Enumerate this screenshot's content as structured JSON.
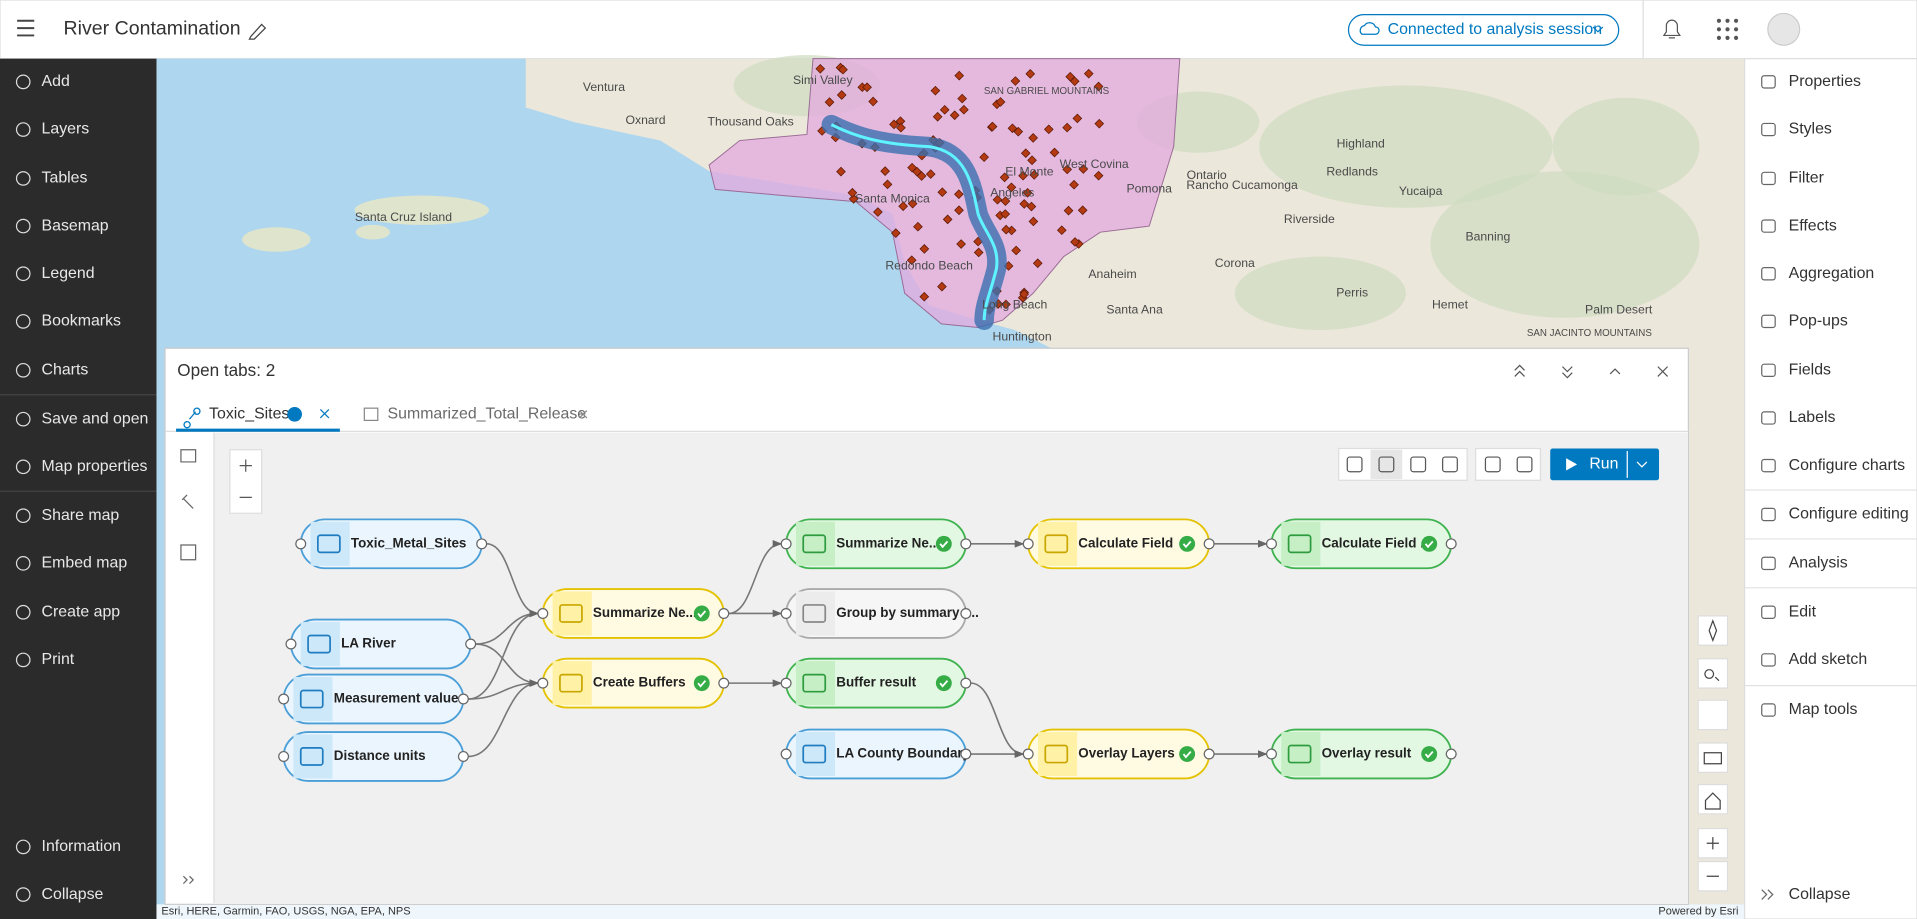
{
  "header": {
    "title": "River  Contamination",
    "session": "Connected to analysis session"
  },
  "left_nav": {
    "items": [
      "Add",
      "Layers",
      "Tables",
      "Basemap",
      "Legend",
      "Bookmarks",
      "Charts",
      "Save and open",
      "Map properties",
      "Share map",
      "Embed map",
      "Create app",
      "Print"
    ],
    "bottom": [
      "Information",
      "Collapse"
    ]
  },
  "right_nav": {
    "items": [
      "Properties",
      "Styles",
      "Filter",
      "Effects",
      "Aggregation",
      "Pop-ups",
      "Fields",
      "Labels",
      "Configure charts",
      "Configure editing",
      "Analysis",
      "Edit",
      "Add sketch",
      "Map tools"
    ],
    "collapse": "Collapse"
  },
  "map": {
    "labels": [
      "Ventura",
      "Oxnard",
      "Thousand Oaks",
      "Simi Valley",
      "SAN GABRIEL MOUNTAINS",
      "Santa Cruz Island",
      "Santa Monica",
      "El Monte",
      "West Covina",
      "Angeles",
      "Pomona",
      "Ontario",
      "Rancho Cucamonga",
      "Highland",
      "Redlands",
      "Yucaipa",
      "Riverside",
      "Corona",
      "Anaheim",
      "Santa Ana",
      "Long Beach",
      "Huntington",
      "Redondo Beach",
      "Perris",
      "Hemet",
      "Banning",
      "Palm Desert",
      "SAN JACINTO MOUNTAINS"
    ],
    "attribution": "Esri, HERE, Garmin, FAO, USGS, NGA, EPA, NPS",
    "powered_by": "Powered by Esri"
  },
  "panel": {
    "title": "Open tabs: 2",
    "tabs": [
      "Toxic_Sites",
      "Summarized_Total_Release"
    ],
    "run": "Run",
    "nodes": [
      "Toxic_Metal_Sites",
      "LA River",
      "Measurement values",
      "Distance units",
      "Summarize Ne...",
      "Create Buffers",
      "Summarize Ne...",
      "Group by summary t...",
      "Buffer result",
      "LA County Boundary",
      "Calculate Field",
      "Calculate Field ...",
      "Overlay Layers",
      "Overlay result"
    ]
  }
}
